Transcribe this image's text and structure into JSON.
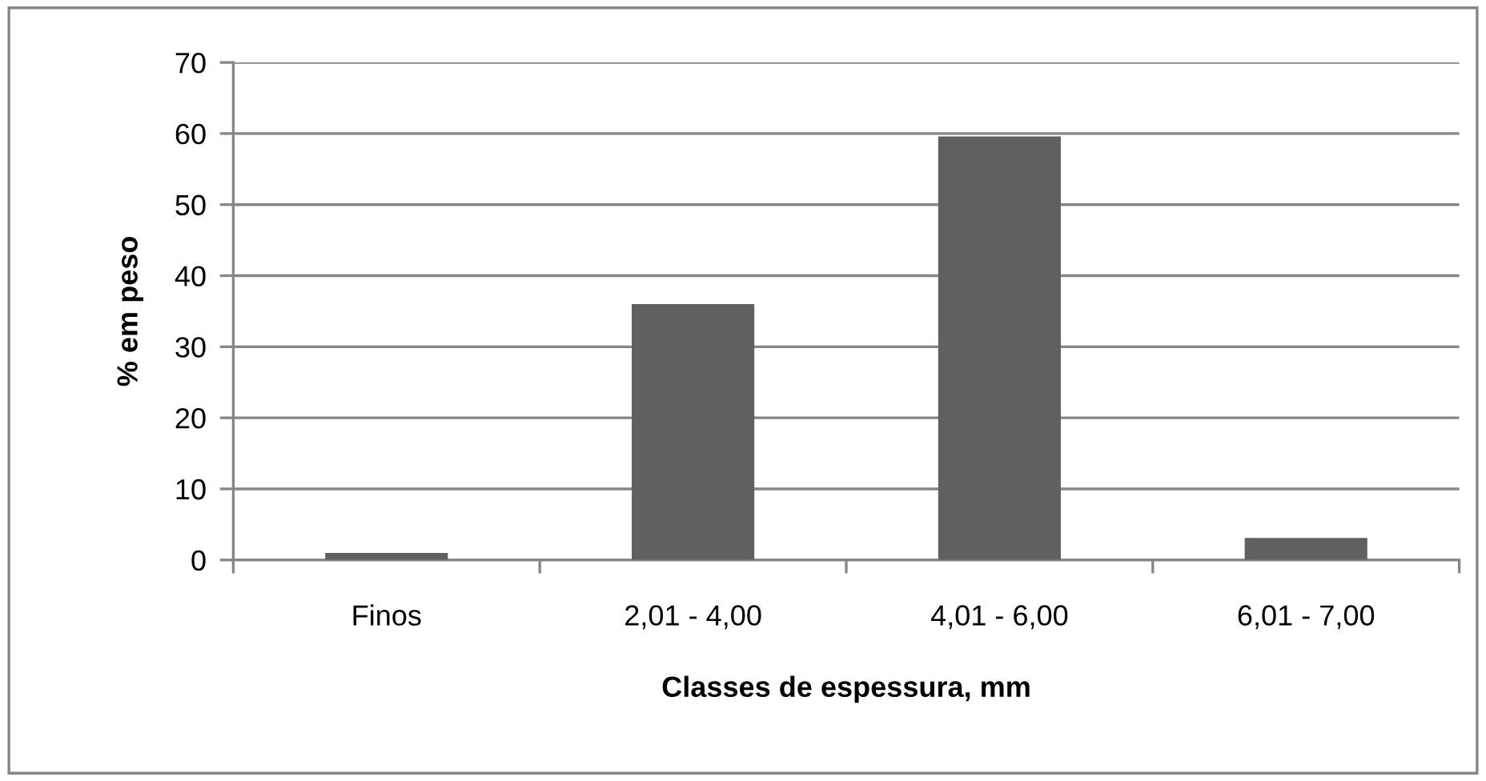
{
  "chart_data": {
    "type": "bar",
    "xlabel": "Classes de espessura, mm",
    "ylabel": "% em peso",
    "categories": [
      "Finos",
      "2,01 - 4,00",
      "4,01 - 6,00",
      "6,01 - 7,00"
    ],
    "values": [
      1.0,
      36,
      59.6,
      3.1
    ],
    "color": "#606060",
    "ylim": [
      0,
      70
    ],
    "yticks": [
      0,
      10,
      20,
      30,
      40,
      50,
      60,
      70
    ],
    "grid": "y"
  }
}
